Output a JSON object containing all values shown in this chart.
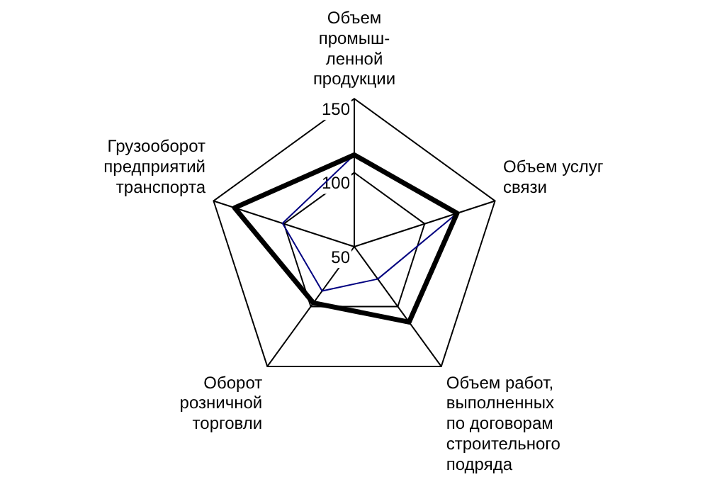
{
  "chart_data": {
    "type": "radar",
    "categories": [
      "Объем\nпромыш-\nленной\nпродукции",
      "Объем услуг\nсвязи",
      "Объем работ,\nвыполненных\nпо договорам\nстроительного\nподряда",
      "Оборот\nрозничной\nторговли",
      "Грузооборот\nпредприятий\nтранспорта"
    ],
    "series": [
      {
        "color": "#000000",
        "values": [
          112,
          123,
          113,
          97,
          135
        ]
      },
      {
        "color": "#000080",
        "values": [
          112,
          123,
          77,
          87,
          101
        ]
      }
    ],
    "ylim": [
      50,
      150
    ],
    "yticks": [
      50,
      100,
      150
    ],
    "grid": true,
    "marker": "none"
  }
}
